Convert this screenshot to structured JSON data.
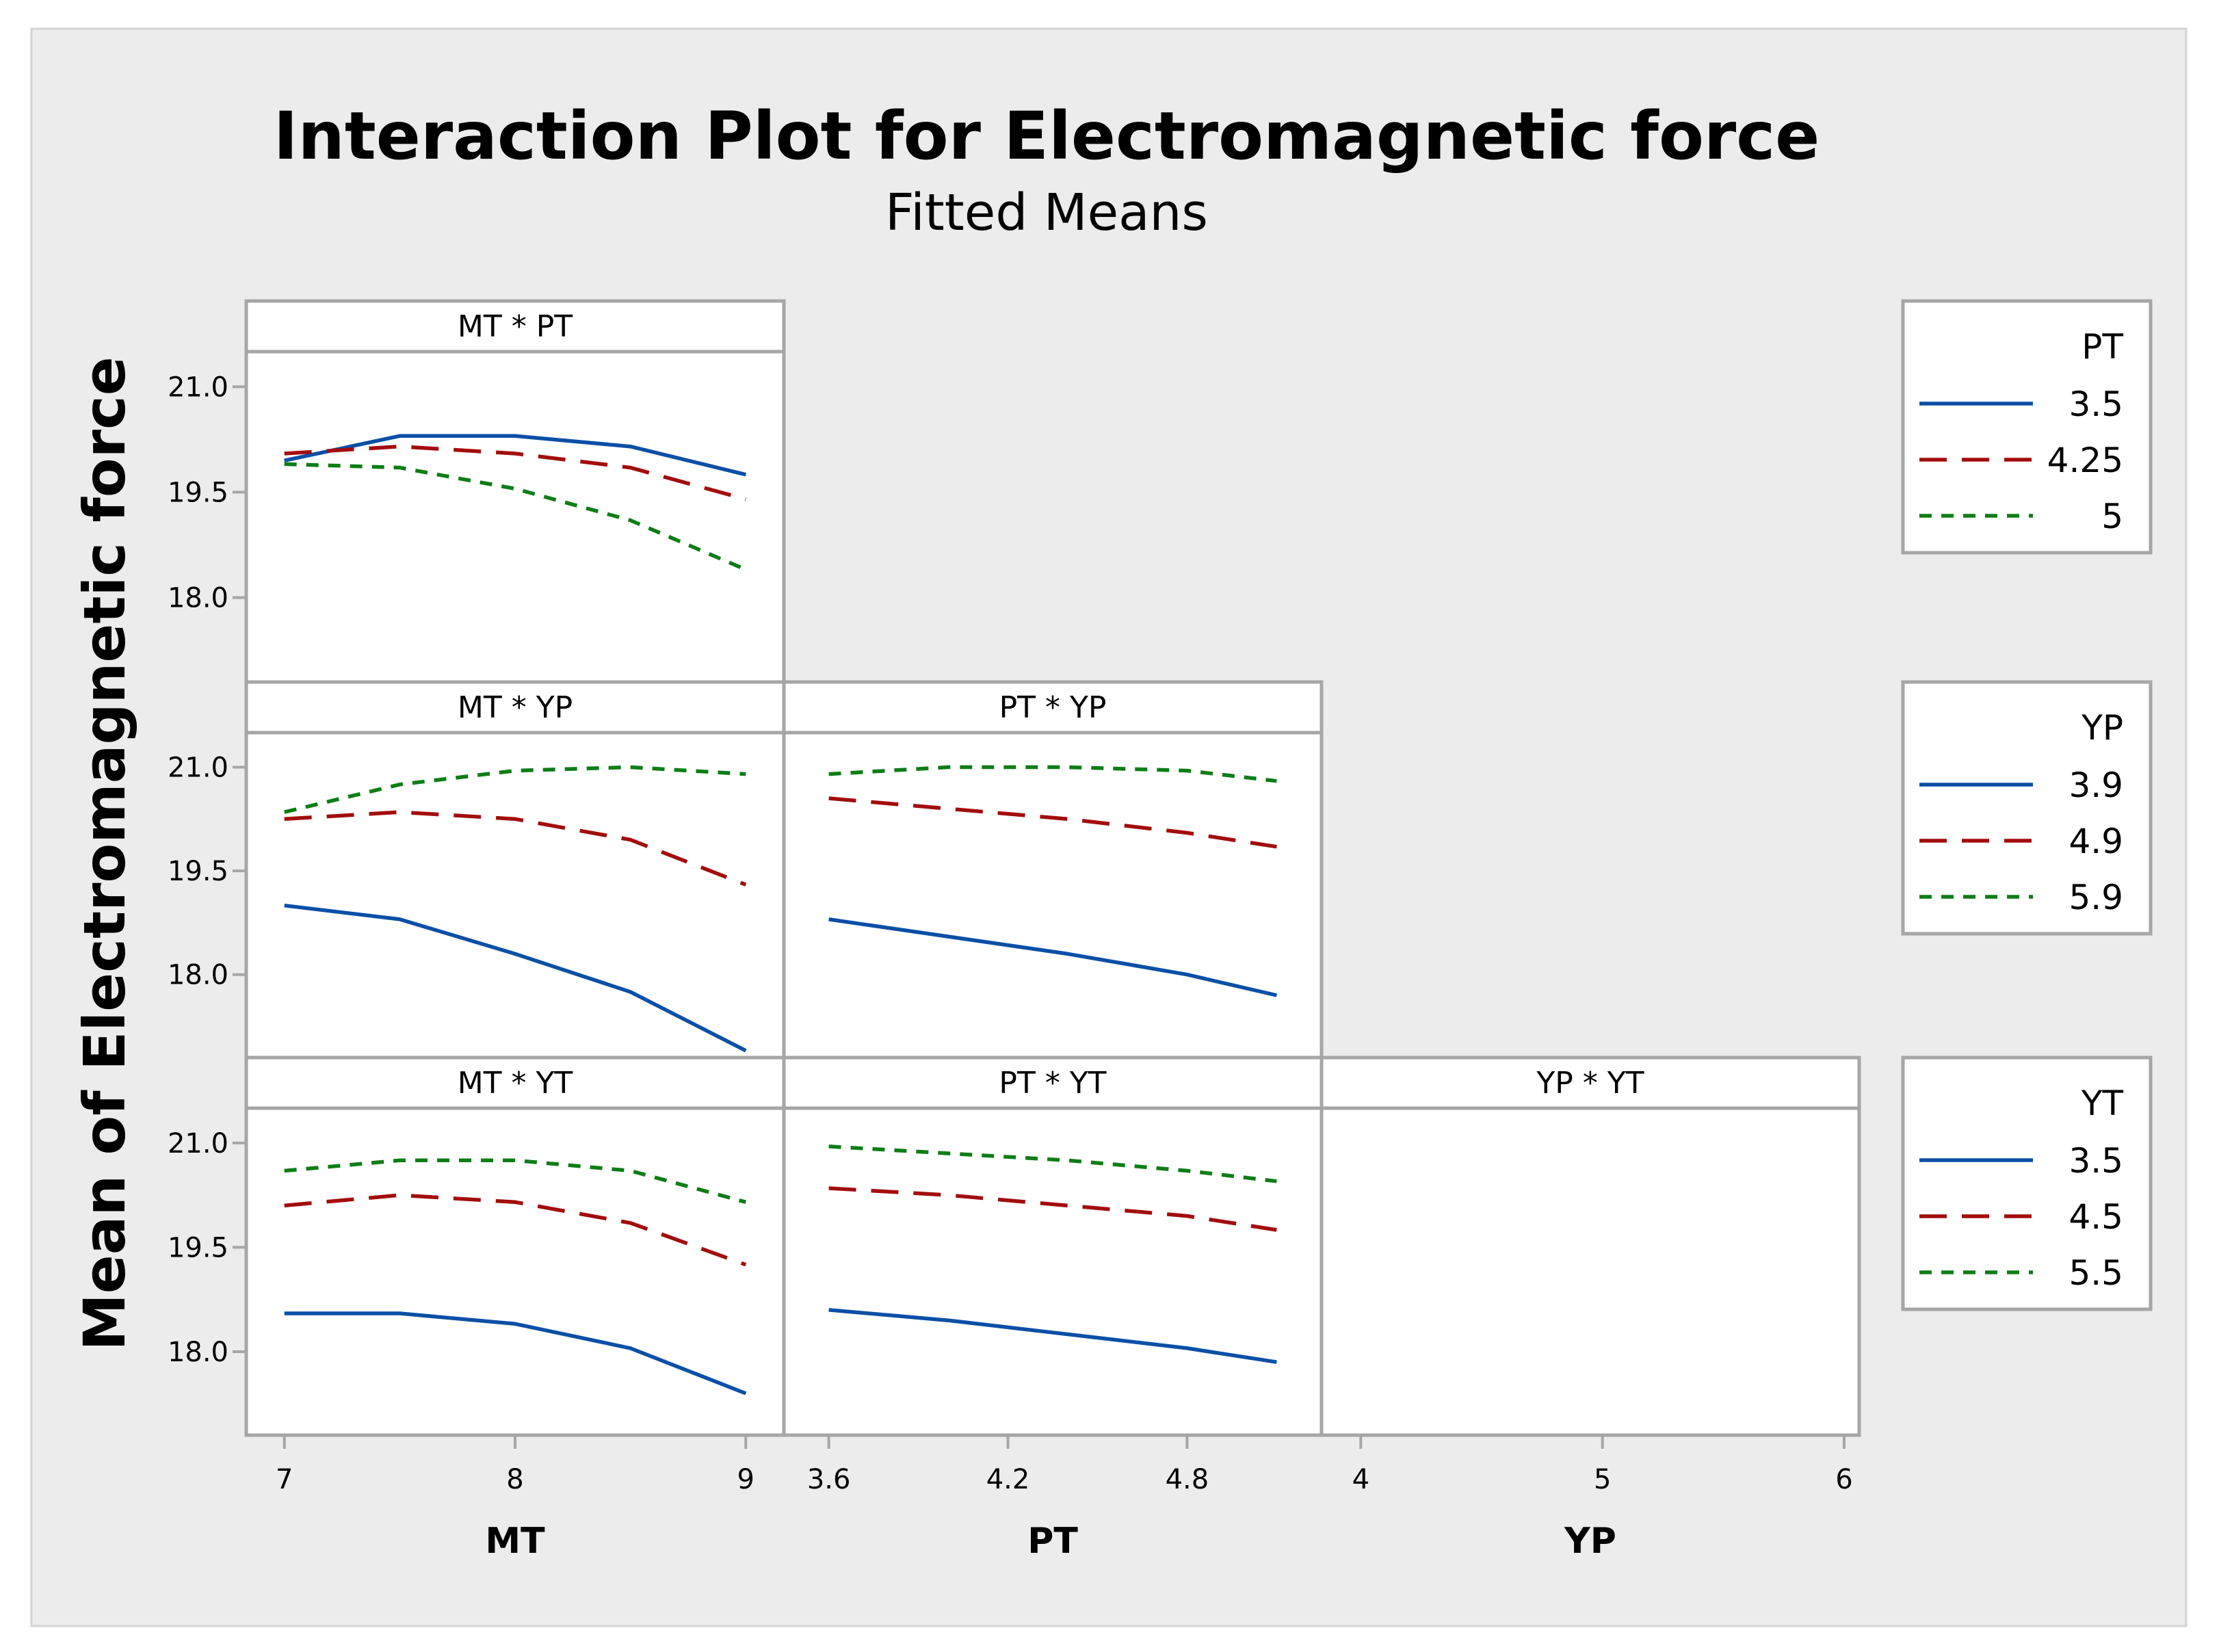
{
  "colors": {
    "background": "#ececec",
    "panel": "#ffffff",
    "frame": "#a6a6a6",
    "series": [
      "#0b4fa6",
      "#a30d0d",
      "#0e7d16"
    ]
  },
  "chart_data": {
    "type": "line",
    "title": "Interaction Plot for Electromagnetic force",
    "subtitle": "Fitted Means",
    "ylabel": "Mean of Electromagnetic force",
    "ylim": [
      16.8,
      21.5
    ],
    "yticks": [
      {
        "value": 21.0,
        "label": "21.0"
      },
      {
        "value": 19.5,
        "label": "19.5"
      },
      {
        "value": 18.0,
        "label": "18.0"
      }
    ],
    "factors": [
      {
        "name": "MT",
        "range": [
          6.9,
          9.1
        ],
        "ticks": [
          {
            "value": 7,
            "label": "7"
          },
          {
            "value": 8,
            "label": "8"
          },
          {
            "value": 9,
            "label": "9"
          }
        ]
      },
      {
        "name": "PT",
        "range": [
          3.5,
          5.2
        ],
        "ticks": [
          {
            "value": 3.6,
            "label": "3.6"
          },
          {
            "value": 4.2,
            "label": "4.2"
          },
          {
            "value": 4.8,
            "label": "4.8"
          }
        ]
      },
      {
        "name": "YP",
        "range": [
          3.9,
          6.0
        ],
        "ticks": [
          {
            "value": 4,
            "label": "4"
          },
          {
            "value": 5,
            "label": "5"
          },
          {
            "value": 6,
            "label": "6"
          }
        ]
      }
    ],
    "legends": [
      {
        "title": "PT",
        "entries": [
          "3.5",
          "4.25",
          "5"
        ]
      },
      {
        "title": "YP",
        "entries": [
          "3.9",
          "4.9",
          "5.9"
        ]
      },
      {
        "title": "YT",
        "entries": [
          "3.5",
          "4.5",
          "5.5"
        ]
      }
    ],
    "panels": [
      {
        "title": "MT * PT",
        "row": 0,
        "col": 0,
        "x": [
          7,
          7.5,
          8,
          8.5,
          9
        ],
        "series": [
          {
            "name": "3.5",
            "values": [
              19.95,
              20.3,
              20.3,
              20.15,
              19.75
            ]
          },
          {
            "name": "4.25",
            "values": [
              20.05,
              20.15,
              20.05,
              19.85,
              19.4
            ]
          },
          {
            "name": "5",
            "values": [
              19.9,
              19.85,
              19.55,
              19.1,
              18.4
            ]
          }
        ]
      },
      {
        "title": "MT * YP",
        "row": 1,
        "col": 0,
        "x": [
          7,
          7.5,
          8,
          8.5,
          9
        ],
        "series": [
          {
            "name": "3.9",
            "values": [
              19.0,
              18.8,
              18.3,
              17.75,
              16.9
            ]
          },
          {
            "name": "4.9",
            "values": [
              20.25,
              20.35,
              20.25,
              19.95,
              19.3
            ]
          },
          {
            "name": "5.9",
            "values": [
              20.35,
              20.75,
              20.95,
              21.0,
              20.9
            ]
          }
        ]
      },
      {
        "title": "PT * YP",
        "row": 1,
        "col": 1,
        "x": [
          3.6,
          4.0,
          4.4,
          4.8,
          5.1
        ],
        "series": [
          {
            "name": "3.9",
            "values": [
              18.8,
              18.55,
              18.3,
              18.0,
              17.7
            ]
          },
          {
            "name": "4.9",
            "values": [
              20.55,
              20.4,
              20.25,
              20.05,
              19.85
            ]
          },
          {
            "name": "5.9",
            "values": [
              20.9,
              21.0,
              21.0,
              20.95,
              20.8
            ]
          }
        ]
      },
      {
        "title": "MT * YT",
        "row": 2,
        "col": 0,
        "x": [
          7,
          7.5,
          8,
          8.5,
          9
        ],
        "series": [
          {
            "name": "3.5",
            "values": [
              18.55,
              18.55,
              18.4,
              18.05,
              17.4
            ]
          },
          {
            "name": "4.5",
            "values": [
              20.1,
              20.25,
              20.15,
              19.85,
              19.25
            ]
          },
          {
            "name": "5.5",
            "values": [
              20.6,
              20.75,
              20.75,
              20.6,
              20.15
            ]
          }
        ]
      },
      {
        "title": "PT * YT",
        "row": 2,
        "col": 1,
        "x": [
          3.6,
          4.0,
          4.4,
          4.8,
          5.1
        ],
        "series": [
          {
            "name": "3.5",
            "values": [
              18.6,
              18.45,
              18.25,
              18.05,
              17.85
            ]
          },
          {
            "name": "4.5",
            "values": [
              20.35,
              20.25,
              20.1,
              19.95,
              19.75
            ]
          },
          {
            "name": "5.5",
            "values": [
              20.95,
              20.85,
              20.75,
              20.6,
              20.45
            ]
          }
        ]
      },
      {
        "title": "YP * YT",
        "row": 2,
        "col": 2,
        "x": [],
        "series": []
      }
    ]
  }
}
